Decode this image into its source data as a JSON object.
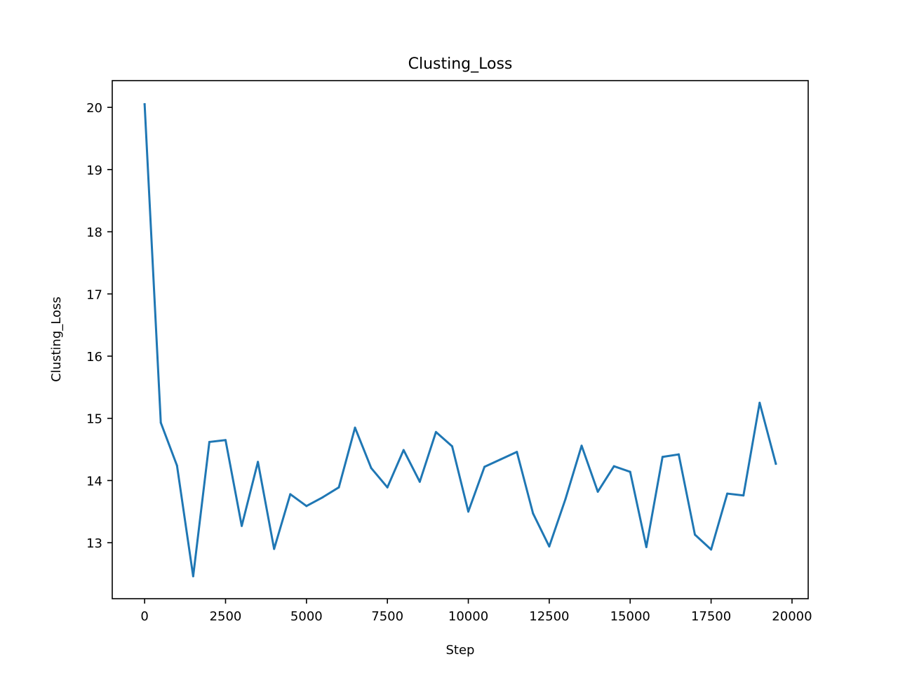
{
  "chart_data": {
    "type": "line",
    "title": "Clusting_Loss",
    "xlabel": "Step",
    "ylabel": "Clusting_Loss",
    "xlim": [
      -1000,
      20500
    ],
    "ylim": [
      12.1,
      20.43
    ],
    "xticks": [
      0,
      2500,
      5000,
      7500,
      10000,
      12500,
      15000,
      17500,
      20000
    ],
    "yticks": [
      13,
      14,
      15,
      16,
      17,
      18,
      19,
      20
    ],
    "grid": false,
    "line_color": "#1f77b4",
    "series": [
      {
        "name": "Clusting_Loss",
        "x": [
          0,
          500,
          1000,
          1500,
          2000,
          2500,
          3000,
          3500,
          4000,
          4500,
          5000,
          5500,
          6000,
          6500,
          7000,
          7500,
          8000,
          8500,
          9000,
          9500,
          10000,
          10500,
          11000,
          11500,
          12000,
          12500,
          13000,
          13500,
          14000,
          14500,
          15000,
          15500,
          16000,
          16500,
          17000,
          17500,
          18000,
          18500,
          19000,
          19500
        ],
        "values": [
          20.05,
          14.93,
          14.24,
          12.46,
          14.62,
          14.65,
          13.27,
          14.3,
          12.9,
          13.78,
          13.59,
          13.73,
          13.89,
          14.85,
          14.2,
          13.89,
          14.49,
          13.98,
          14.78,
          14.55,
          13.5,
          14.22,
          14.34,
          14.46,
          13.47,
          12.94,
          13.7,
          14.56,
          13.82,
          14.23,
          14.14,
          12.93,
          14.38,
          14.42,
          13.13,
          12.89,
          13.79,
          13.76,
          15.25,
          14.27
        ]
      }
    ]
  }
}
